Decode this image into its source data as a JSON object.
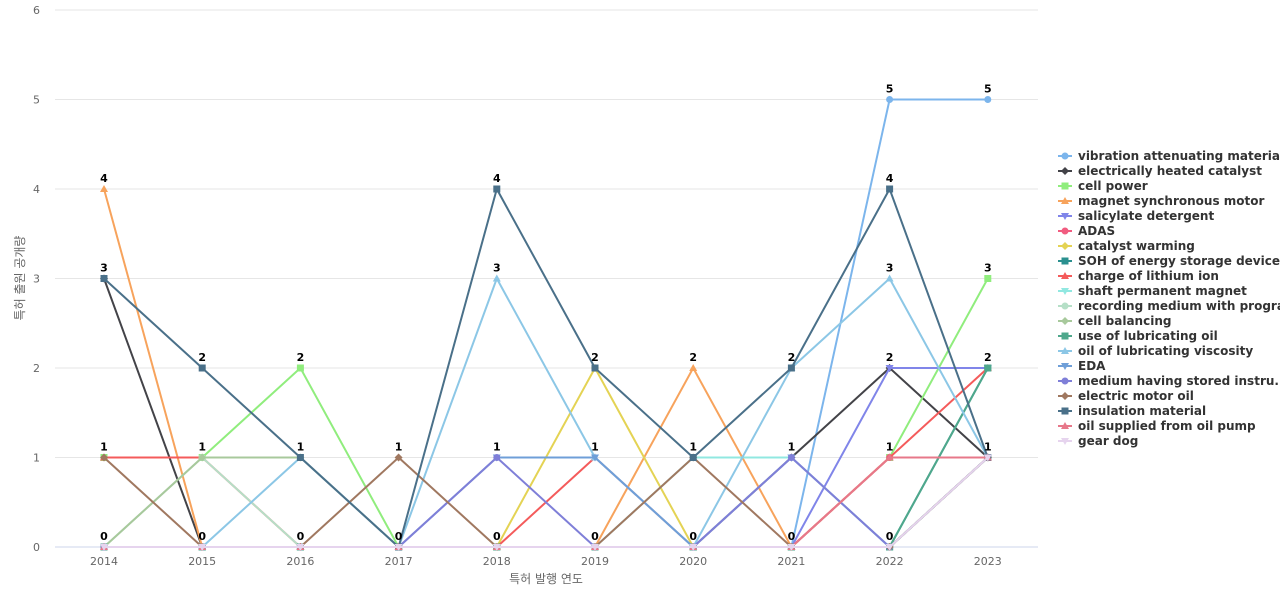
{
  "chart_data": {
    "type": "line",
    "xlabel": "특허 발행 연도",
    "ylabel": "특허 출원 공개량",
    "x": [
      "2014",
      "2015",
      "2016",
      "2017",
      "2018",
      "2019",
      "2020",
      "2021",
      "2022",
      "2023"
    ],
    "ylim": [
      0,
      6
    ],
    "yticks": [
      "0",
      "1",
      "2",
      "3",
      "4",
      "5",
      "6"
    ],
    "grid": true,
    "legend_position": "right",
    "series": [
      {
        "name": "vibration attenuating material",
        "color": "#7cb5ec",
        "marker": "circle",
        "values": [
          0,
          0,
          0,
          0,
          0,
          0,
          0,
          0,
          5,
          5
        ]
      },
      {
        "name": "electrically heated catalyst",
        "color": "#434348",
        "marker": "diamond",
        "values": [
          3,
          0,
          0,
          0,
          0,
          0,
          0,
          1,
          2,
          1
        ]
      },
      {
        "name": "cell power",
        "color": "#90ed7d",
        "marker": "square",
        "values": [
          1,
          1,
          2,
          0,
          0,
          0,
          0,
          0,
          1,
          3
        ]
      },
      {
        "name": "magnet synchronous motor",
        "color": "#f7a35c",
        "marker": "triangle",
        "values": [
          4,
          0,
          0,
          0,
          0,
          0,
          2,
          0,
          1,
          1
        ]
      },
      {
        "name": "salicylate detergent",
        "color": "#8085e9",
        "marker": "triangle-down",
        "values": [
          0,
          0,
          0,
          0,
          0,
          0,
          0,
          0,
          2,
          2
        ]
      },
      {
        "name": "ADAS",
        "color": "#f15c80",
        "marker": "circle",
        "values": [
          0,
          0,
          0,
          0,
          0,
          0,
          0,
          0,
          1,
          1
        ]
      },
      {
        "name": "catalyst warming",
        "color": "#e4d354",
        "marker": "diamond",
        "values": [
          0,
          0,
          0,
          0,
          0,
          2,
          0,
          0,
          0,
          1
        ]
      },
      {
        "name": "SOH of energy storage device",
        "color": "#2b908f",
        "marker": "square",
        "values": [
          0,
          0,
          0,
          0,
          0,
          0,
          0,
          0,
          0,
          2
        ]
      },
      {
        "name": "charge of lithium ion",
        "color": "#f45b5b",
        "marker": "triangle",
        "values": [
          1,
          1,
          0,
          0,
          0,
          1,
          0,
          0,
          1,
          2
        ]
      },
      {
        "name": "shaft permanent magnet",
        "color": "#91e8e1",
        "marker": "triangle-down",
        "values": [
          0,
          0,
          0,
          0,
          0,
          0,
          1,
          1,
          0,
          1
        ]
      },
      {
        "name": "recording medium with program",
        "color": "#b5dfc7",
        "marker": "circle",
        "values": [
          0,
          1,
          0,
          0,
          0,
          0,
          0,
          0,
          0,
          1
        ]
      },
      {
        "name": "cell balancing",
        "color": "#a8c99c",
        "marker": "diamond",
        "values": [
          0,
          1,
          1,
          0,
          0,
          0,
          0,
          0,
          0,
          1
        ]
      },
      {
        "name": "use of lubricating oil",
        "color": "#4fa88c",
        "marker": "square",
        "values": [
          0,
          0,
          0,
          0,
          0,
          0,
          0,
          0,
          0,
          2
        ]
      },
      {
        "name": "oil of lubricating viscosity",
        "color": "#8cc7e6",
        "marker": "triangle",
        "values": [
          0,
          0,
          1,
          0,
          3,
          1,
          0,
          2,
          3,
          1
        ]
      },
      {
        "name": "EDA",
        "color": "#6f9fd8",
        "marker": "triangle-down",
        "values": [
          0,
          0,
          0,
          0,
          1,
          1,
          0,
          1,
          0,
          1
        ]
      },
      {
        "name": "medium having stored instru...",
        "color": "#7f7fd8",
        "marker": "circle",
        "values": [
          0,
          0,
          0,
          0,
          1,
          0,
          0,
          1,
          0,
          1
        ]
      },
      {
        "name": "electric motor oil",
        "color": "#a07860",
        "marker": "diamond",
        "values": [
          1,
          0,
          0,
          1,
          0,
          0,
          1,
          0,
          0,
          1
        ]
      },
      {
        "name": "insulation material",
        "color": "#4a7089",
        "marker": "square",
        "values": [
          3,
          2,
          1,
          0,
          4,
          2,
          1,
          2,
          4,
          1
        ]
      },
      {
        "name": "oil supplied from oil pump",
        "color": "#e7788a",
        "marker": "triangle",
        "values": [
          0,
          0,
          0,
          0,
          0,
          0,
          0,
          0,
          1,
          1
        ]
      },
      {
        "name": "gear dog",
        "color": "#e6d4ee",
        "marker": "triangle-down",
        "values": [
          0,
          0,
          0,
          0,
          0,
          0,
          0,
          0,
          0,
          1
        ]
      }
    ],
    "data_labels": [
      {
        "x": "2014",
        "value": 4
      },
      {
        "x": "2014",
        "value": 3
      },
      {
        "x": "2014",
        "value": 1
      },
      {
        "x": "2014",
        "value": 0
      },
      {
        "x": "2015",
        "value": 2
      },
      {
        "x": "2015",
        "value": 1
      },
      {
        "x": "2015",
        "value": 0
      },
      {
        "x": "2016",
        "value": 2
      },
      {
        "x": "2016",
        "value": 1
      },
      {
        "x": "2016",
        "value": 0
      },
      {
        "x": "2017",
        "value": 1
      },
      {
        "x": "2017",
        "value": 0
      },
      {
        "x": "2018",
        "value": 4
      },
      {
        "x": "2018",
        "value": 3
      },
      {
        "x": "2018",
        "value": 1
      },
      {
        "x": "2018",
        "value": 0
      },
      {
        "x": "2019",
        "value": 2
      },
      {
        "x": "2019",
        "value": 1
      },
      {
        "x": "2019",
        "value": 0
      },
      {
        "x": "2020",
        "value": 2
      },
      {
        "x": "2020",
        "value": 1
      },
      {
        "x": "2020",
        "value": 0
      },
      {
        "x": "2021",
        "value": 2
      },
      {
        "x": "2021",
        "value": 1
      },
      {
        "x": "2021",
        "value": 0
      },
      {
        "x": "2022",
        "value": 5
      },
      {
        "x": "2022",
        "value": 4
      },
      {
        "x": "2022",
        "value": 3
      },
      {
        "x": "2022",
        "value": 2
      },
      {
        "x": "2022",
        "value": 1
      },
      {
        "x": "2022",
        "value": 0
      },
      {
        "x": "2023",
        "value": 5
      },
      {
        "x": "2023",
        "value": 3
      },
      {
        "x": "2023",
        "value": 2
      },
      {
        "x": "2023",
        "value": 1
      }
    ]
  }
}
